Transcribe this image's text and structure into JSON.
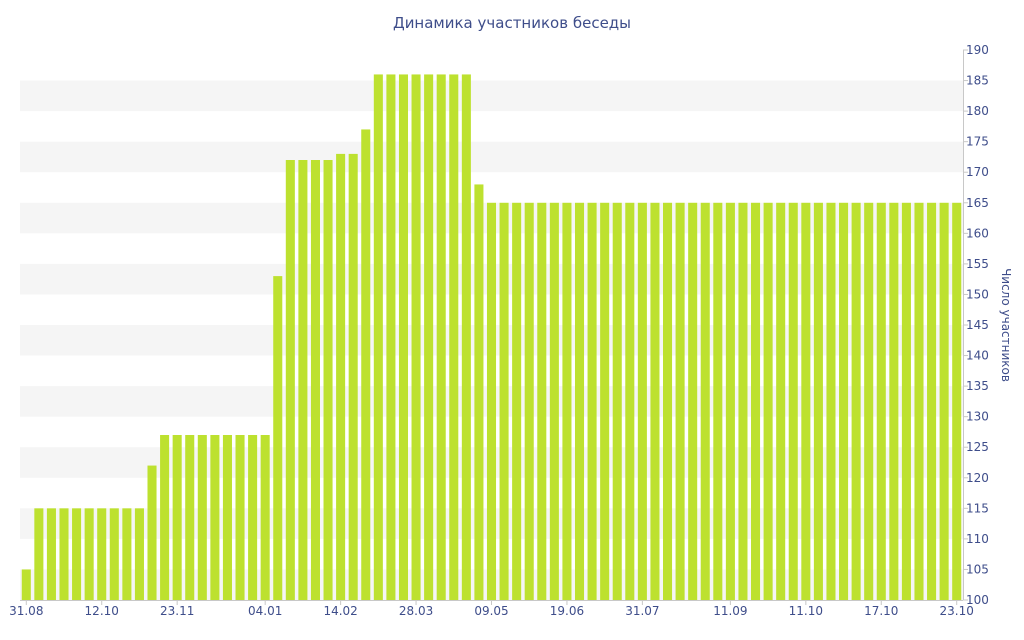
{
  "chart_data": {
    "type": "bar",
    "title": "Динамика участников беседы",
    "xlabel": "",
    "ylabel": "Число участников",
    "ylim": [
      100,
      190
    ],
    "y_ticks": [
      100,
      105,
      110,
      115,
      120,
      125,
      130,
      135,
      140,
      145,
      150,
      155,
      160,
      165,
      170,
      175,
      180,
      185,
      190
    ],
    "y_axis_position": "right",
    "grid": "alternating horizontal bands",
    "bar_color": "#bde12f",
    "band_color": "#f5f5f5",
    "text_color": "#3e4d8a",
    "x_tick_labels": [
      "31.08",
      "12.10",
      "23.11",
      "04.01",
      "14.02",
      "28.03",
      "09.05",
      "19.06",
      "31.07",
      "11.09",
      "11.10",
      "17.10",
      "23.10"
    ],
    "values": [
      105,
      115,
      115,
      115,
      115,
      115,
      115,
      115,
      115,
      115,
      122,
      127,
      127,
      127,
      127,
      127,
      127,
      127,
      127,
      127,
      153,
      172,
      172,
      172,
      172,
      173,
      173,
      177,
      186,
      186,
      186,
      186,
      186,
      186,
      186,
      186,
      168,
      165,
      165,
      165,
      165,
      165,
      165,
      165,
      165,
      165,
      165,
      165,
      165,
      165,
      165,
      165,
      165,
      165,
      165,
      165,
      165,
      165,
      165,
      165,
      165,
      165,
      165,
      165,
      165,
      165,
      165,
      165,
      165,
      165,
      165,
      165,
      165,
      165,
      165
    ]
  }
}
